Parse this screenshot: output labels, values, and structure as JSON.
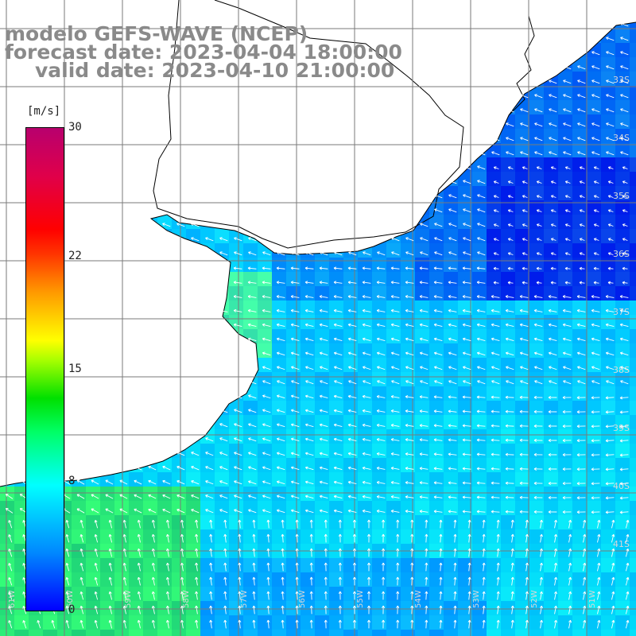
{
  "header": {
    "line1": "modelo GEFS-WAVE (NCEP)",
    "line2": "forecast date: 2023-04-04 18:00:00",
    "line3": "valid date: 2023-04-10 21:00:00"
  },
  "colorbar": {
    "unit": "[m/s]",
    "ticks": [
      {
        "label": "30",
        "value": 30
      },
      {
        "label": "22",
        "value": 22
      },
      {
        "label": "15",
        "value": 15
      },
      {
        "label": "8",
        "value": 8
      },
      {
        "label": "0",
        "value": 0
      }
    ],
    "min": 0,
    "max": 30
  },
  "map": {
    "land_color": "#ffffff",
    "coast_color": "#000000",
    "grid_color": "#7a7a7a",
    "latitude_labels": [
      "33S",
      "34S",
      "35S",
      "36S",
      "37S",
      "38S",
      "39S",
      "40S",
      "41S"
    ],
    "longitude_labels": [
      "61W",
      "60W",
      "59W",
      "58W",
      "57W",
      "56W",
      "55W",
      "54W",
      "53W",
      "52W",
      "51W"
    ]
  }
}
